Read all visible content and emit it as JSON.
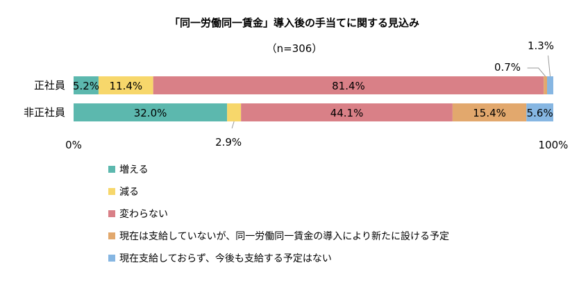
{
  "chart_data": {
    "type": "bar",
    "orientation": "horizontal",
    "stacked": true,
    "title": "「同一労働同一賃金」導入後の手当てに関する見込み",
    "subtitle": "（n=306）",
    "categories": [
      "正社員",
      "非正社員"
    ],
    "series": [
      {
        "name": "増える",
        "color": "#5cb8ae",
        "values": [
          5.2,
          32.0
        ],
        "labels": [
          "5.2%",
          "32.0%"
        ]
      },
      {
        "name": "減る",
        "color": "#f7d76b",
        "values": [
          11.4,
          2.9
        ],
        "labels": [
          "11.4%",
          "2.9%"
        ]
      },
      {
        "name": "変わらない",
        "color": "#d98087",
        "values": [
          81.4,
          44.1
        ],
        "labels": [
          "81.4%",
          "44.1%"
        ]
      },
      {
        "name": "現在は支給していないが、同一労働同一賃金の導入により新たに設ける予定",
        "color": "#e2a86d",
        "values": [
          0.7,
          15.4
        ],
        "labels": [
          "0.7%",
          "15.4%"
        ]
      },
      {
        "name": "現在支給しておらず、今後も支給する予定はない",
        "color": "#86b6e2",
        "values": [
          1.3,
          5.6
        ],
        "labels": [
          "1.3%",
          "5.6%"
        ]
      }
    ],
    "xlim": [
      0,
      100
    ],
    "xticks": [
      "0%",
      "100%"
    ],
    "legend_position": "bottom-left",
    "grid": false
  }
}
